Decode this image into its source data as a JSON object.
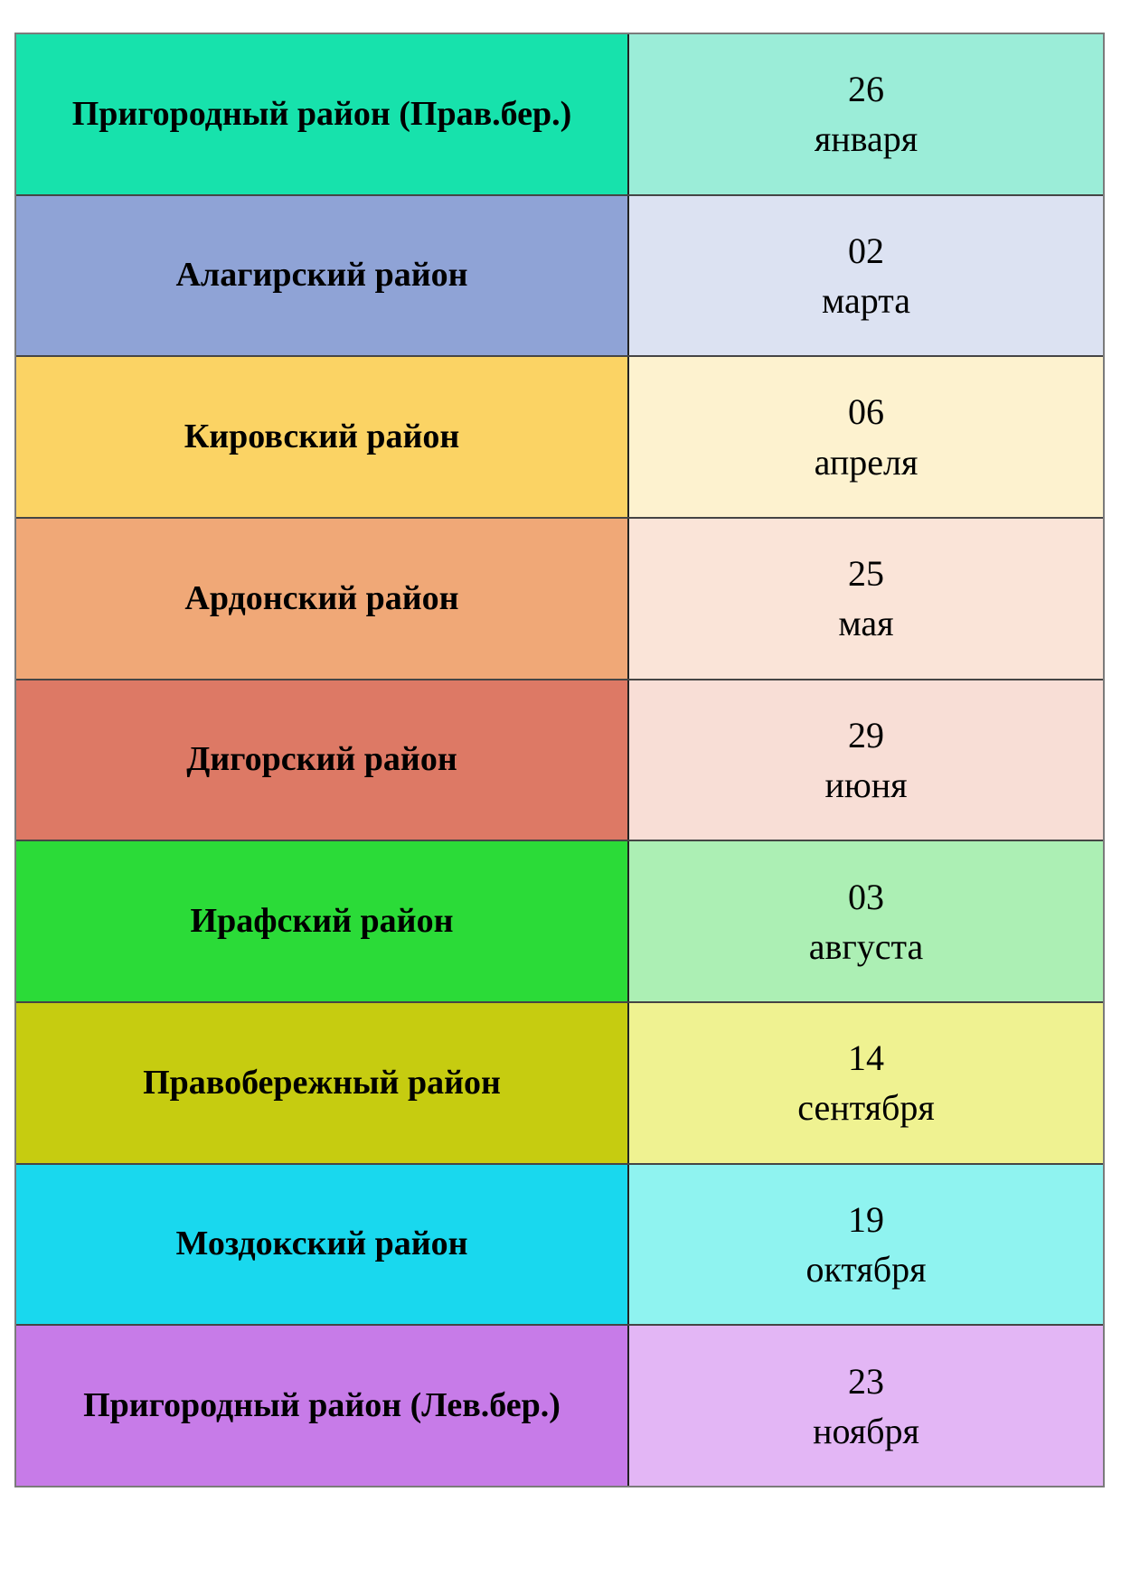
{
  "page": {
    "background_color": "#ffffff",
    "description": "Schedule table of districts with dates"
  },
  "table": {
    "outer_border_color": "#7b7b7b",
    "inner_border_color": "#454545",
    "divider_border_color": "#222222",
    "text_color": "#000000",
    "columns": [
      "district",
      "date"
    ],
    "rows": [
      {
        "district": "Пригородный район (Прав.бер.)",
        "day": "26",
        "month": "января",
        "district_bg": "#17E2AC",
        "date_bg": "#9BEDD8"
      },
      {
        "district": "Алагирский район",
        "day": "02",
        "month": "марта",
        "district_bg": "#8FA3D6",
        "date_bg": "#DCE2F2"
      },
      {
        "district": "Кировский район",
        "day": "06",
        "month": "апреля",
        "district_bg": "#FBD364",
        "date_bg": "#FDF2CF"
      },
      {
        "district": "Ардонский район",
        "day": "25",
        "month": "мая",
        "district_bg": "#F0A877",
        "date_bg": "#FAE4D8"
      },
      {
        "district": "Дигорский район",
        "day": "29",
        "month": "июня",
        "district_bg": "#DD7965",
        "date_bg": "#F8DED6"
      },
      {
        "district": "Ирафский район",
        "day": "03",
        "month": "августа",
        "district_bg": "#2BDB38",
        "date_bg": "#ACEFB4"
      },
      {
        "district": "Правобережный район",
        "day": "14",
        "month": "сентября",
        "district_bg": "#C6CC10",
        "date_bg": "#EFF291"
      },
      {
        "district": "Моздокский район",
        "day": "19",
        "month": "октября",
        "district_bg": "#19D8EE",
        "date_bg": "#8FF3F0"
      },
      {
        "district": "Пригородный район (Лев.бер.)",
        "day": "23",
        "month": "ноября",
        "district_bg": "#C77BE8",
        "date_bg": "#E3B6F5"
      }
    ]
  }
}
